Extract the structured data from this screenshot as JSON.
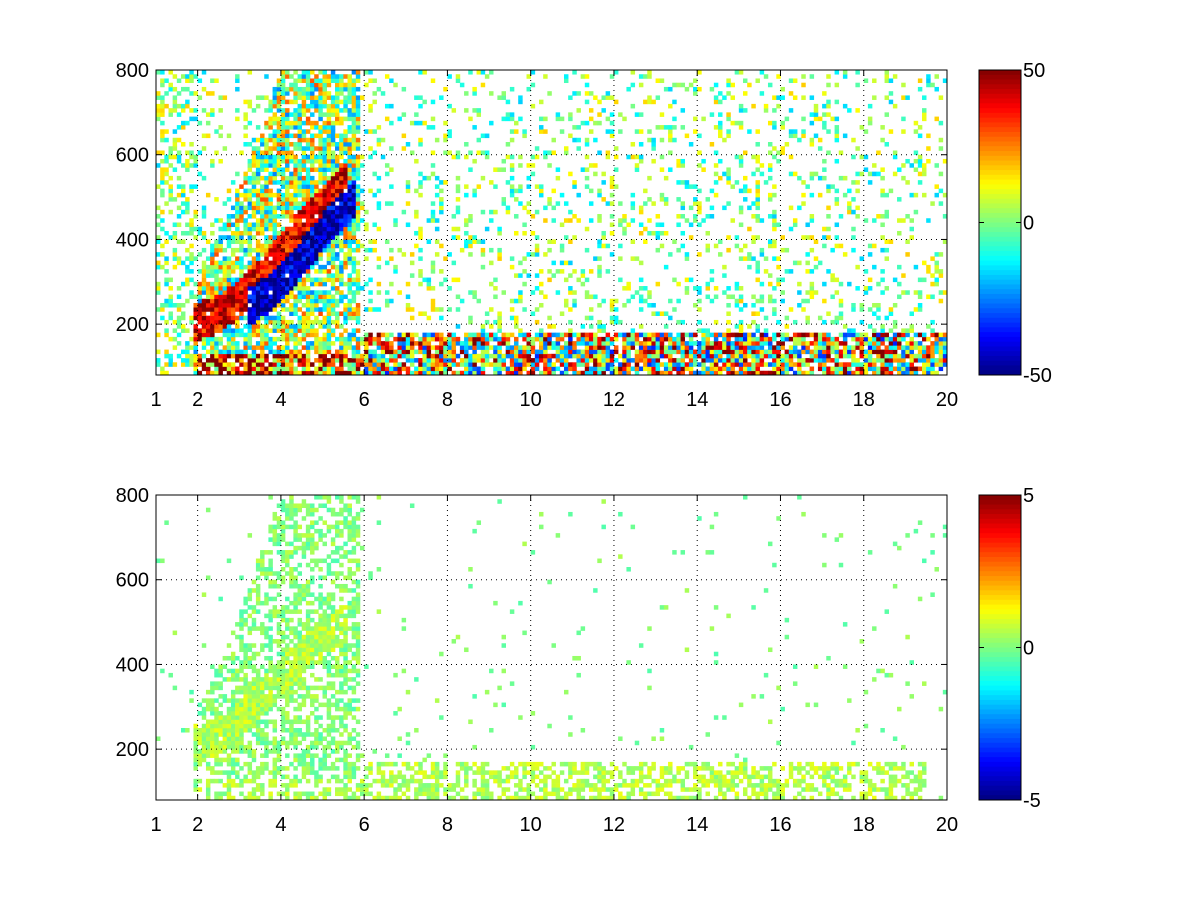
{
  "chart_data": [
    {
      "type": "heatmap",
      "title": "",
      "xlabel": "",
      "ylabel": "",
      "xlim": [
        1,
        20
      ],
      "ylim": [
        80,
        800
      ],
      "x_ticks": [
        1,
        2,
        4,
        6,
        8,
        10,
        12,
        14,
        16,
        18,
        20
      ],
      "y_ticks": [
        200,
        400,
        600,
        800
      ],
      "grid": true,
      "colormap": "jet",
      "colorbar": {
        "range": [
          -50,
          50
        ],
        "ticks": [
          50,
          0,
          -50
        ],
        "placement": "right"
      },
      "structures": [
        {
          "kind": "ridge",
          "x": [
            1.9,
            2.5,
            3.0,
            3.5,
            4.0,
            4.5,
            5.0,
            5.6
          ],
          "y": [
            200,
            225,
            260,
            310,
            370,
            430,
            480,
            540
          ],
          "value": 40
        },
        {
          "kind": "ridge",
          "x": [
            3.2,
            3.7,
            4.2,
            4.7,
            5.2,
            5.8
          ],
          "y": [
            240,
            270,
            320,
            380,
            440,
            500
          ],
          "value": -45
        },
        {
          "kind": "band",
          "x_range": [
            2.0,
            6.0
          ],
          "y_range": [
            85,
            130
          ],
          "value": 35
        },
        {
          "kind": "band",
          "x_range": [
            6.0,
            20.0
          ],
          "y_range": [
            85,
            180
          ],
          "value": 10
        }
      ]
    },
    {
      "type": "heatmap",
      "title": "",
      "xlabel": "",
      "ylabel": "",
      "xlim": [
        1,
        20
      ],
      "ylim": [
        80,
        800
      ],
      "x_ticks": [
        1,
        2,
        4,
        6,
        8,
        10,
        12,
        14,
        16,
        18,
        20
      ],
      "y_ticks": [
        200,
        400,
        600,
        800
      ],
      "grid": true,
      "colormap": "jet",
      "colorbar": {
        "range": [
          -5,
          5
        ],
        "ticks": [
          5,
          0,
          -5
        ],
        "placement": "right"
      },
      "structures": [
        {
          "kind": "ridge",
          "x": [
            1.9,
            2.5,
            3.0,
            3.5,
            4.0,
            4.5,
            5.0,
            5.6
          ],
          "y": [
            210,
            230,
            270,
            320,
            370,
            420,
            460,
            500
          ],
          "value": 0.5
        },
        {
          "kind": "band",
          "x_range": [
            2.0,
            6.0
          ],
          "y_range": [
            85,
            130
          ],
          "value": 0.4
        },
        {
          "kind": "band",
          "x_range": [
            6.0,
            19.5
          ],
          "y_range": [
            85,
            170
          ],
          "value": 0.5
        }
      ]
    }
  ]
}
